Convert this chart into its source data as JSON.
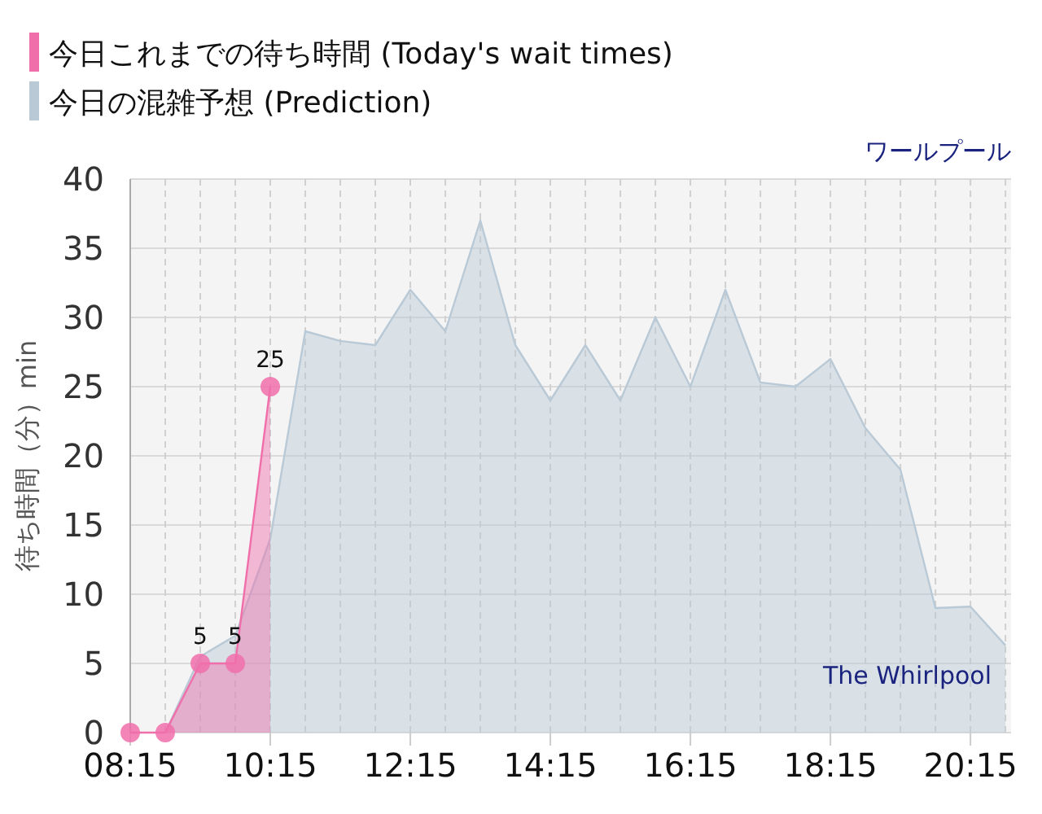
{
  "chart_data": {
    "type": "area",
    "title": "ワールプール",
    "ylabel": "待ち時間（分）min",
    "annotations": [
      "The Whirlpool"
    ],
    "xlim": [
      8.25,
      20.83
    ],
    "ylim": [
      0,
      40
    ],
    "xticks": [
      {
        "value": 8.25,
        "label": "08:15"
      },
      {
        "value": 8.75,
        "label": null
      },
      {
        "value": 9.25,
        "label": null
      },
      {
        "value": 9.75,
        "label": null
      },
      {
        "value": 10.25,
        "label": "10:15"
      },
      {
        "value": 10.75,
        "label": null
      },
      {
        "value": 11.25,
        "label": null
      },
      {
        "value": 11.75,
        "label": null
      },
      {
        "value": 12.25,
        "label": "12:15"
      },
      {
        "value": 12.75,
        "label": null
      },
      {
        "value": 13.25,
        "label": null
      },
      {
        "value": 13.75,
        "label": null
      },
      {
        "value": 14.25,
        "label": "14:15"
      },
      {
        "value": 14.75,
        "label": null
      },
      {
        "value": 15.25,
        "label": null
      },
      {
        "value": 15.75,
        "label": null
      },
      {
        "value": 16.25,
        "label": "16:15"
      },
      {
        "value": 16.75,
        "label": null
      },
      {
        "value": 17.25,
        "label": null
      },
      {
        "value": 17.75,
        "label": null
      },
      {
        "value": 18.25,
        "label": "18:15"
      },
      {
        "value": 18.75,
        "label": null
      },
      {
        "value": 19.25,
        "label": null
      },
      {
        "value": 19.75,
        "label": null
      },
      {
        "value": 20.25,
        "label": "20:15"
      },
      {
        "value": 20.75,
        "label": null
      }
    ],
    "yticks": [
      0,
      5,
      10,
      15,
      20,
      25,
      30,
      35,
      40
    ],
    "grid": true,
    "legend": "top left",
    "series": [
      {
        "name": "今日これまでの待ち時間 (Today's wait times)",
        "marker": "circle",
        "color": "#f06eaa",
        "x": [
          8.25,
          8.75,
          9.25,
          9.75,
          10.25
        ],
        "values": [
          0,
          0,
          5,
          5,
          25
        ],
        "value_labels": [
          null,
          null,
          "5",
          "5",
          "25"
        ]
      },
      {
        "name": "今日の混雑予想 (Prediction)",
        "marker": "none",
        "color": "#b9c9d6",
        "x": [
          8.75,
          9.25,
          9.75,
          10.25,
          10.75,
          11.25,
          11.75,
          12.25,
          12.75,
          13.25,
          13.75,
          14.25,
          14.75,
          15.25,
          15.75,
          16.25,
          16.75,
          17.25,
          17.75,
          18.25,
          18.75,
          19.25,
          19.75,
          20.25,
          20.75
        ],
        "values": [
          0,
          5.5,
          7,
          14,
          29,
          28.3,
          28,
          32,
          29,
          37,
          28,
          24,
          28,
          24,
          30,
          25,
          32,
          25.3,
          25,
          27,
          22,
          19,
          9,
          9.1,
          6.3
        ]
      }
    ]
  }
}
